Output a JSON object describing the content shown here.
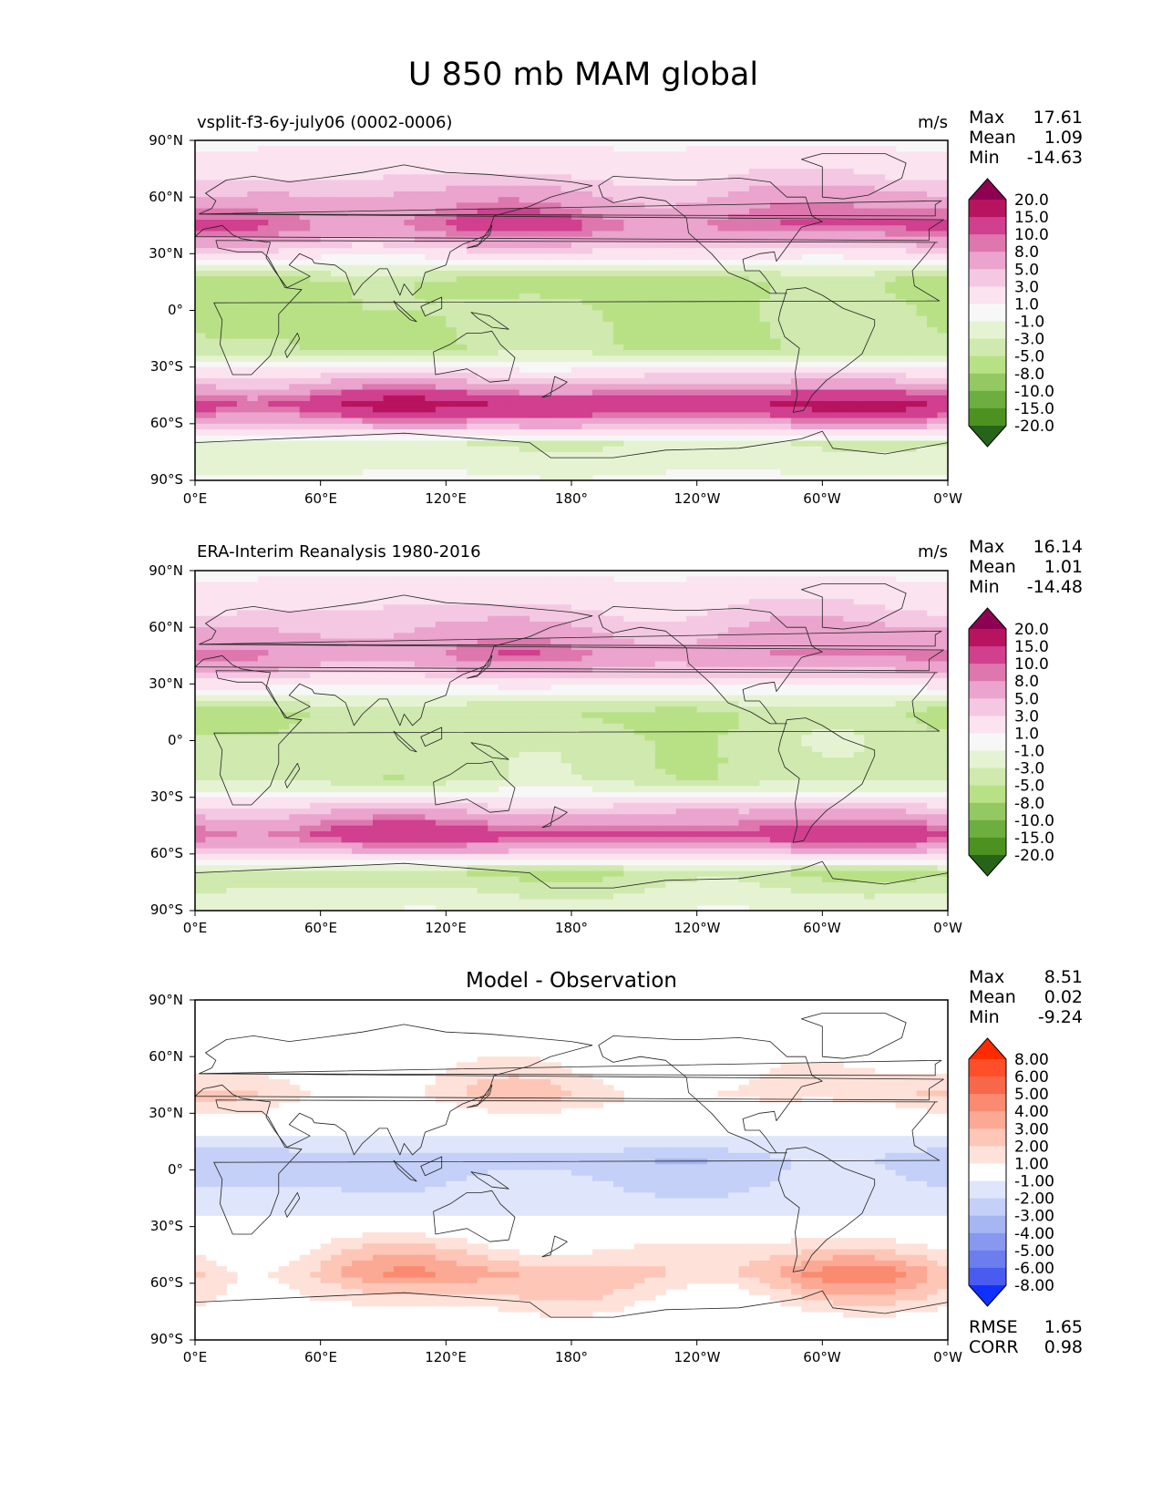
{
  "figure_title": "U 850 mb MAM global",
  "x_ticks": [
    "0°E",
    "60°E",
    "120°E",
    "180°",
    "120°W",
    "60°W",
    "0°W"
  ],
  "y_ticks": [
    "90°N",
    "60°N",
    "30°N",
    "0°",
    "30°S",
    "60°S",
    "90°S"
  ],
  "chart_data": [
    {
      "type": "heatmap",
      "title": "vsplit-f3-6y-july06 (0002-0006)",
      "units": "m/s",
      "stats": {
        "max_label": "Max",
        "max": "17.61",
        "mean_label": "Mean",
        "mean": "1.09",
        "min_label": "Min",
        "min": "-14.63"
      },
      "colorbar": {
        "levels": [
          "20.0",
          "15.0",
          "10.0",
          "8.0",
          "5.0",
          "3.0",
          "1.0",
          "-1.0",
          "-3.0",
          "-5.0",
          "-8.0",
          "-10.0",
          "-15.0",
          "-20.0"
        ],
        "colors": [
          "#8e0152",
          "#b8135f",
          "#d13f8f",
          "#de77ae",
          "#eaa4cd",
          "#f4c8e2",
          "#fbe3ef",
          "#f7f7f7",
          "#e6f3d3",
          "#cfe9ae",
          "#b8e186",
          "#93c862",
          "#6ead3f",
          "#4d9221",
          "#276419"
        ]
      },
      "x": [
        "0°E",
        "60°E",
        "120°E",
        "180°",
        "120°W",
        "60°W",
        "0°W"
      ],
      "y": [
        "90°N",
        "60°N",
        "30°N",
        "0°",
        "30°S",
        "60°S",
        "90°S"
      ],
      "zonal_bands_ms": [
        {
          "lat": "70°N",
          "value": 3
        },
        {
          "lat": "45°N",
          "value": 10
        },
        {
          "lat": "15°N",
          "value": -6
        },
        {
          "lat": "0°",
          "value": -5
        },
        {
          "lat": "20°S",
          "value": -5
        },
        {
          "lat": "40°S",
          "value": 6
        },
        {
          "lat": "50°S",
          "value": 15
        },
        {
          "lat": "70°S",
          "value": -3
        }
      ],
      "xlim": [
        "0°E",
        "0°W"
      ],
      "ylim": [
        "90°S",
        "90°N"
      ]
    },
    {
      "type": "heatmap",
      "title": "ERA-Interim Reanalysis 1980-2016",
      "units": "m/s",
      "stats": {
        "max_label": "Max",
        "max": "16.14",
        "mean_label": "Mean",
        "mean": "1.01",
        "min_label": "Min",
        "min": "-14.48"
      },
      "colorbar": {
        "levels": [
          "20.0",
          "15.0",
          "10.0",
          "8.0",
          "5.0",
          "3.0",
          "1.0",
          "-1.0",
          "-3.0",
          "-5.0",
          "-8.0",
          "-10.0",
          "-15.0",
          "-20.0"
        ],
        "colors": [
          "#8e0152",
          "#b8135f",
          "#d13f8f",
          "#de77ae",
          "#eaa4cd",
          "#f4c8e2",
          "#fbe3ef",
          "#f7f7f7",
          "#e6f3d3",
          "#cfe9ae",
          "#b8e186",
          "#93c862",
          "#6ead3f",
          "#4d9221",
          "#276419"
        ]
      },
      "x": [
        "0°E",
        "60°E",
        "120°E",
        "180°",
        "120°W",
        "60°W",
        "0°W"
      ],
      "y": [
        "90°N",
        "60°N",
        "30°N",
        "0°",
        "30°S",
        "60°S",
        "90°S"
      ],
      "zonal_bands_ms": [
        {
          "lat": "70°N",
          "value": 3
        },
        {
          "lat": "45°N",
          "value": 8
        },
        {
          "lat": "15°N",
          "value": -5
        },
        {
          "lat": "0°",
          "value": -4
        },
        {
          "lat": "20°S",
          "value": -4
        },
        {
          "lat": "40°S",
          "value": 6
        },
        {
          "lat": "50°S",
          "value": 12
        },
        {
          "lat": "70°S",
          "value": -5
        }
      ],
      "xlim": [
        "0°E",
        "0°W"
      ],
      "ylim": [
        "90°S",
        "90°N"
      ]
    },
    {
      "type": "heatmap",
      "title": "Model - Observation",
      "units": "",
      "stats": {
        "max_label": "Max",
        "max": "8.51",
        "mean_label": "Mean",
        "mean": "0.02",
        "min_label": "Min",
        "min": "-9.24"
      },
      "colorbar": {
        "levels": [
          "8.00",
          "6.00",
          "5.00",
          "4.00",
          "3.00",
          "2.00",
          "1.00",
          "-1.00",
          "-2.00",
          "-3.00",
          "-4.00",
          "-5.00",
          "-6.00",
          "-8.00"
        ],
        "colors": [
          "#ff2a00",
          "#ff4f2a",
          "#f7684a",
          "#fa8a70",
          "#fba995",
          "#fdc6b7",
          "#fee2d9",
          "#ffffff",
          "#dfe6fb",
          "#c4d0f7",
          "#a6b6f3",
          "#8898ef",
          "#6c7dee",
          "#4a5bf0",
          "#1030ff"
        ]
      },
      "x": [
        "0°E",
        "60°E",
        "120°E",
        "180°",
        "120°W",
        "60°W",
        "0°W"
      ],
      "y": [
        "90°N",
        "60°N",
        "30°N",
        "0°",
        "30°S",
        "60°S",
        "90°S"
      ],
      "zonal_bands_ms": [
        {
          "lat": "40°N",
          "value": 1.5
        },
        {
          "lat": "5°N",
          "value": -2.5
        },
        {
          "lat": "20°S",
          "value": -1.5
        },
        {
          "lat": "55°S",
          "value": 3
        }
      ],
      "footer": {
        "rmse_label": "RMSE",
        "rmse": "1.65",
        "corr_label": "CORR",
        "corr": "0.98"
      },
      "xlim": [
        "0°E",
        "0°W"
      ],
      "ylim": [
        "90°S",
        "90°N"
      ]
    }
  ]
}
